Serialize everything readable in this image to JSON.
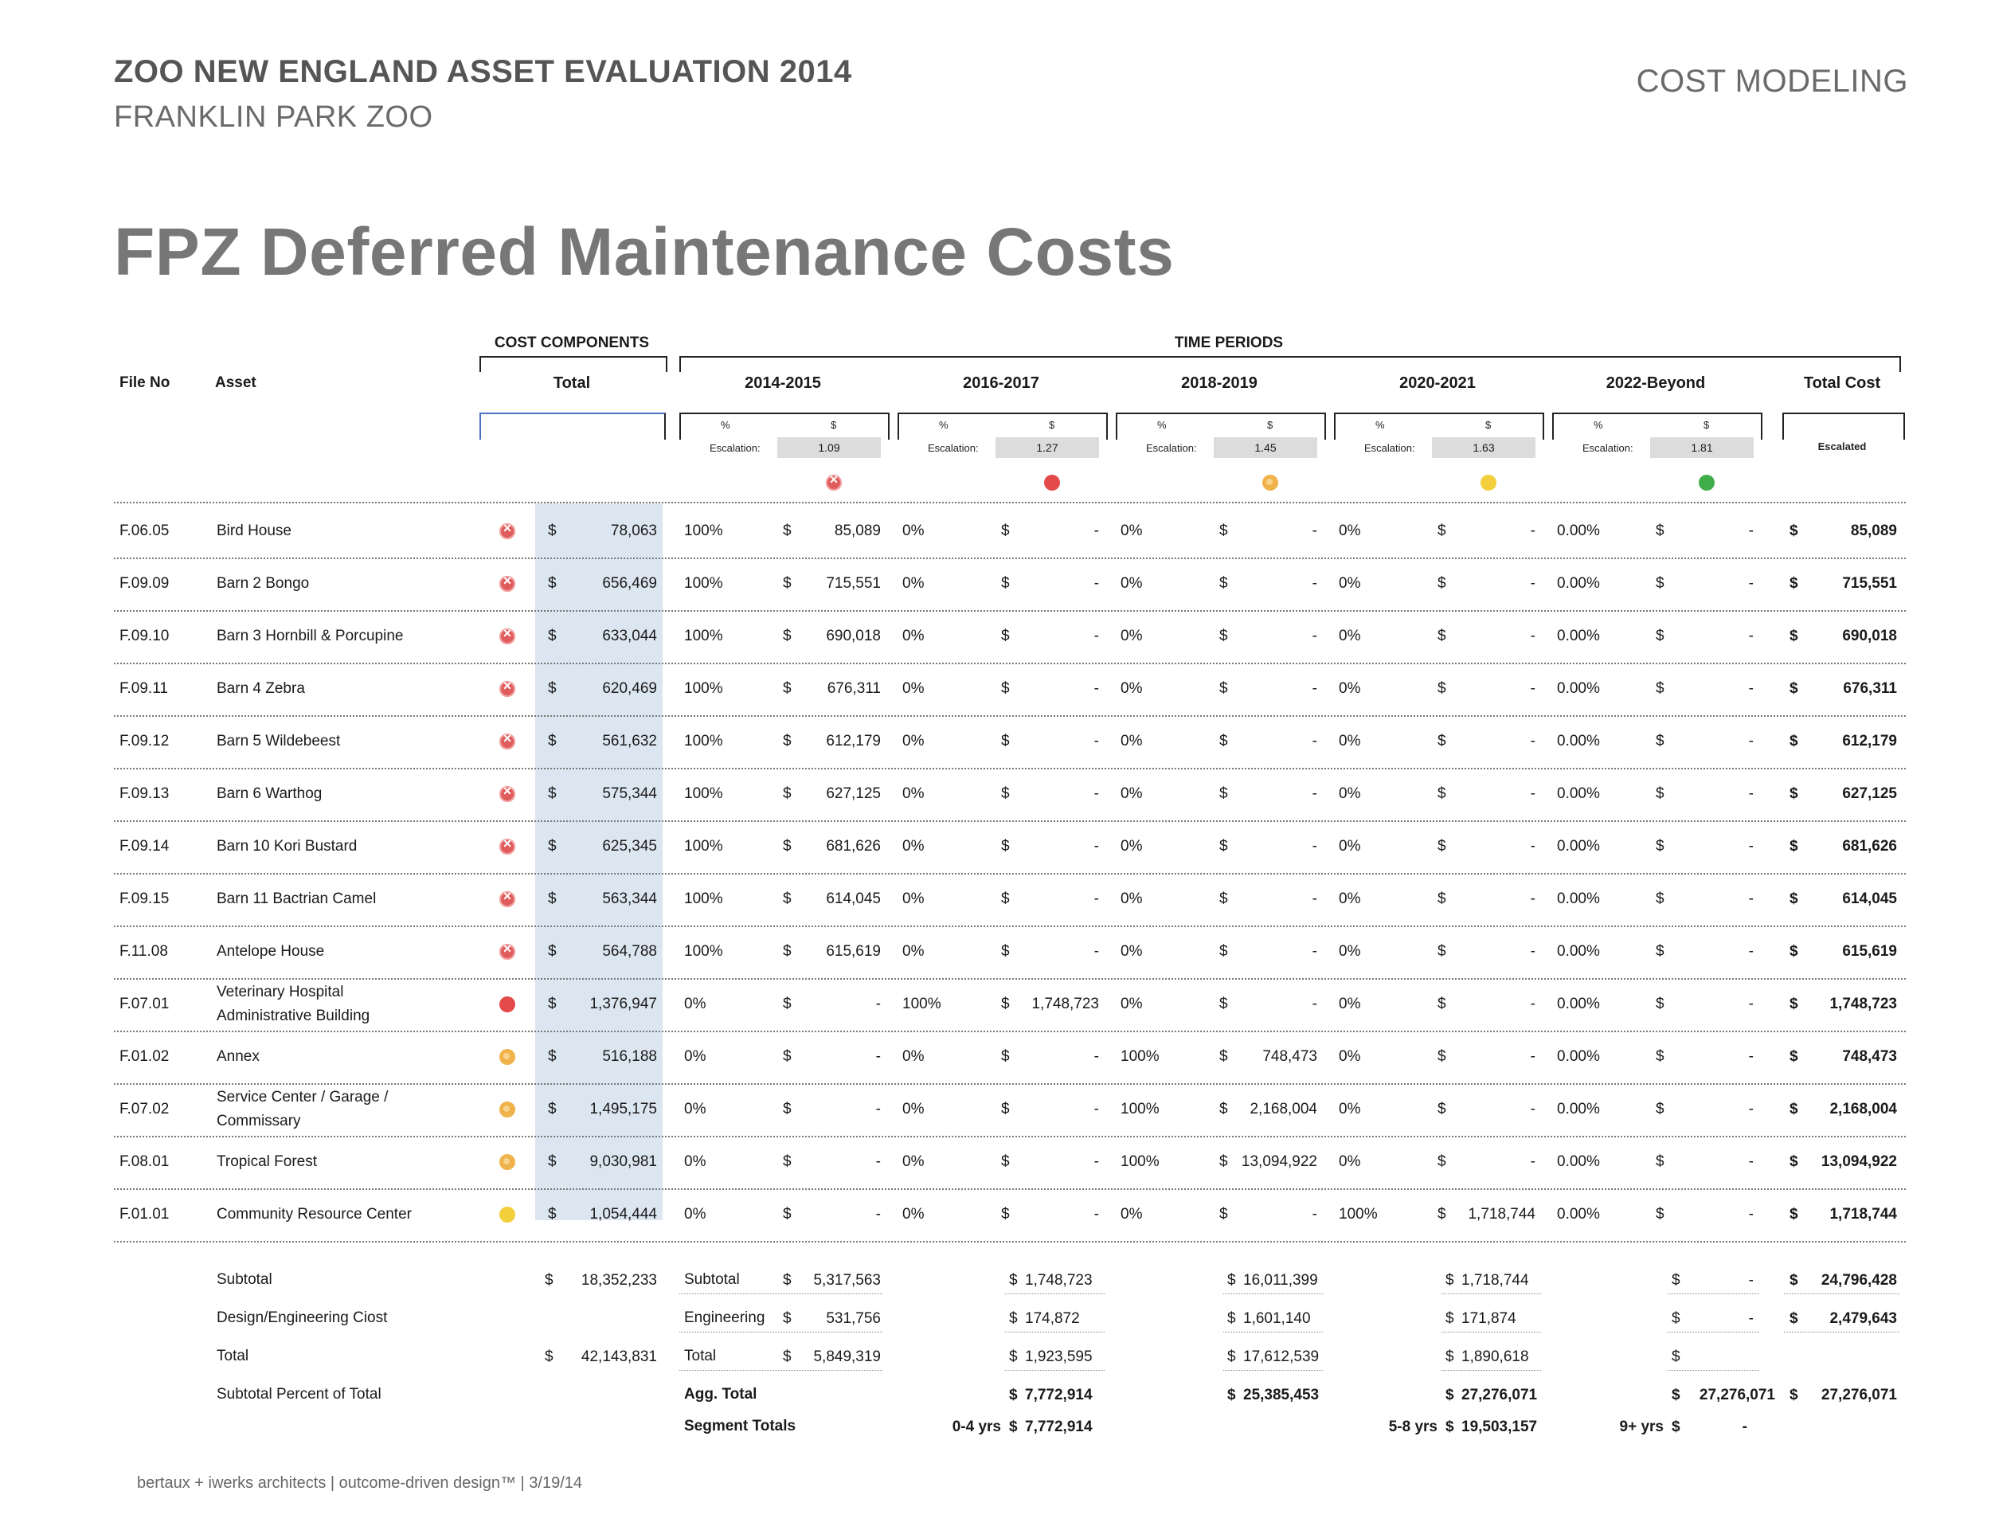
{
  "header": {
    "main": "ZOO NEW ENGLAND ASSET EVALUATION 2014",
    "sub": "FRANKLIN PARK ZOO",
    "right": "COST MODELING",
    "title": "FPZ Deferred Maintenance Costs"
  },
  "groups": {
    "cost_components": "COST COMPONENTS",
    "time_periods": "TIME PERIODS"
  },
  "columns": {
    "file_no": "File No",
    "asset": "Asset",
    "total": "Total",
    "total_cost": "Total Cost",
    "escalated": "Escalated",
    "pct_symbol": "%",
    "dollar_symbol": "$",
    "escalation": "Escalation:"
  },
  "periods": [
    {
      "label": "2014-2015",
      "escalation": "1.09",
      "status": "x-red"
    },
    {
      "label": "2016-2017",
      "escalation": "1.27",
      "status": "red"
    },
    {
      "label": "2018-2019",
      "escalation": "1.45",
      "status": "orange"
    },
    {
      "label": "2020-2021",
      "escalation": "1.63",
      "status": "yellow"
    },
    {
      "label": "2022-Beyond",
      "escalation": "1.81",
      "status": "green"
    }
  ],
  "rows": [
    {
      "file": "F.06.05",
      "asset": [
        "Bird House"
      ],
      "status": "x-red",
      "total": "78,063",
      "periods": [
        [
          "100%",
          "85,089"
        ],
        [
          "0%",
          "-"
        ],
        [
          "0%",
          "-"
        ],
        [
          "0%",
          "-"
        ],
        [
          "0.00%",
          "-"
        ]
      ],
      "escalated": "85,089"
    },
    {
      "file": "F.09.09",
      "asset": [
        "Barn 2 Bongo"
      ],
      "status": "x-red",
      "total": "656,469",
      "periods": [
        [
          "100%",
          "715,551"
        ],
        [
          "0%",
          "-"
        ],
        [
          "0%",
          "-"
        ],
        [
          "0%",
          "-"
        ],
        [
          "0.00%",
          "-"
        ]
      ],
      "escalated": "715,551"
    },
    {
      "file": "F.09.10",
      "asset": [
        "Barn 3 Hornbill & Porcupine"
      ],
      "status": "x-red",
      "total": "633,044",
      "periods": [
        [
          "100%",
          "690,018"
        ],
        [
          "0%",
          "-"
        ],
        [
          "0%",
          "-"
        ],
        [
          "0%",
          "-"
        ],
        [
          "0.00%",
          "-"
        ]
      ],
      "escalated": "690,018"
    },
    {
      "file": "F.09.11",
      "asset": [
        "Barn 4 Zebra"
      ],
      "status": "x-red",
      "total": "620,469",
      "periods": [
        [
          "100%",
          "676,311"
        ],
        [
          "0%",
          "-"
        ],
        [
          "0%",
          "-"
        ],
        [
          "0%",
          "-"
        ],
        [
          "0.00%",
          "-"
        ]
      ],
      "escalated": "676,311"
    },
    {
      "file": "F.09.12",
      "asset": [
        "Barn 5 Wildebeest"
      ],
      "status": "x-red",
      "total": "561,632",
      "periods": [
        [
          "100%",
          "612,179"
        ],
        [
          "0%",
          "-"
        ],
        [
          "0%",
          "-"
        ],
        [
          "0%",
          "-"
        ],
        [
          "0.00%",
          "-"
        ]
      ],
      "escalated": "612,179"
    },
    {
      "file": "F.09.13",
      "asset": [
        "Barn 6 Warthog"
      ],
      "status": "x-red",
      "total": "575,344",
      "periods": [
        [
          "100%",
          "627,125"
        ],
        [
          "0%",
          "-"
        ],
        [
          "0%",
          "-"
        ],
        [
          "0%",
          "-"
        ],
        [
          "0.00%",
          "-"
        ]
      ],
      "escalated": "627,125"
    },
    {
      "file": "F.09.14",
      "asset": [
        "Barn 10 Kori Bustard"
      ],
      "status": "x-red",
      "total": "625,345",
      "periods": [
        [
          "100%",
          "681,626"
        ],
        [
          "0%",
          "-"
        ],
        [
          "0%",
          "-"
        ],
        [
          "0%",
          "-"
        ],
        [
          "0.00%",
          "-"
        ]
      ],
      "escalated": "681,626"
    },
    {
      "file": "F.09.15",
      "asset": [
        "Barn 11 Bactrian Camel"
      ],
      "status": "x-red",
      "total": "563,344",
      "periods": [
        [
          "100%",
          "614,045"
        ],
        [
          "0%",
          "-"
        ],
        [
          "0%",
          "-"
        ],
        [
          "0%",
          "-"
        ],
        [
          "0.00%",
          "-"
        ]
      ],
      "escalated": "614,045"
    },
    {
      "file": "F.11.08",
      "asset": [
        "Antelope House"
      ],
      "status": "x-red",
      "total": "564,788",
      "periods": [
        [
          "100%",
          "615,619"
        ],
        [
          "0%",
          "-"
        ],
        [
          "0%",
          "-"
        ],
        [
          "0%",
          "-"
        ],
        [
          "0.00%",
          "-"
        ]
      ],
      "escalated": "615,619"
    },
    {
      "file": "F.07.01",
      "asset": [
        "Veterinary Hospital",
        "Administrative Building"
      ],
      "status": "red",
      "total": "1,376,947",
      "periods": [
        [
          "0%",
          "-"
        ],
        [
          "100%",
          "1,748,723"
        ],
        [
          "0%",
          "-"
        ],
        [
          "0%",
          "-"
        ],
        [
          "0.00%",
          "-"
        ]
      ],
      "escalated": "1,748,723"
    },
    {
      "file": "F.01.02",
      "asset": [
        "Annex"
      ],
      "status": "orange",
      "total": "516,188",
      "periods": [
        [
          "0%",
          "-"
        ],
        [
          "0%",
          "-"
        ],
        [
          "100%",
          "748,473"
        ],
        [
          "0%",
          "-"
        ],
        [
          "0.00%",
          "-"
        ]
      ],
      "escalated": "748,473"
    },
    {
      "file": "F.07.02",
      "asset": [
        "Service Center / Garage /",
        "Commissary"
      ],
      "status": "orange",
      "total": "1,495,175",
      "periods": [
        [
          "0%",
          "-"
        ],
        [
          "0%",
          "-"
        ],
        [
          "100%",
          "2,168,004"
        ],
        [
          "0%",
          "-"
        ],
        [
          "0.00%",
          "-"
        ]
      ],
      "escalated": "2,168,004"
    },
    {
      "file": "F.08.01",
      "asset": [
        "Tropical Forest"
      ],
      "status": "orange",
      "total": "9,030,981",
      "periods": [
        [
          "0%",
          "-"
        ],
        [
          "0%",
          "-"
        ],
        [
          "100%",
          "13,094,922"
        ],
        [
          "0%",
          "-"
        ],
        [
          "0.00%",
          "-"
        ]
      ],
      "escalated": "13,094,922"
    },
    {
      "file": "F.01.01",
      "asset": [
        "Community Resource Center"
      ],
      "status": "yellow",
      "total": "1,054,444",
      "periods": [
        [
          "0%",
          "-"
        ],
        [
          "0%",
          "-"
        ],
        [
          "0%",
          "-"
        ],
        [
          "100%",
          "1,718,744"
        ],
        [
          "0.00%",
          "-"
        ]
      ],
      "escalated": "1,718,744"
    }
  ],
  "summary": {
    "labels": {
      "subtotal": "Subtotal",
      "design": "Design/Engineering Ciost",
      "total": "Total",
      "pct": "Subtotal Percent of Total"
    },
    "total_col": {
      "subtotal": "18,352,233",
      "total": "42,143,831"
    },
    "inner_labels": {
      "subtotal": "Subtotal",
      "engineering": "Engineering",
      "total": "Total",
      "agg": "Agg. Total",
      "segment": "Segment Totals"
    },
    "p1": {
      "subtotal": "5,317,563",
      "engineering": "531,756",
      "total": "5,849,319"
    },
    "p2": {
      "subtotal": "1,748,723",
      "engineering": "174,872",
      "total": "1,923,595",
      "agg": "7,772,914",
      "seg_label": "0-4 yrs",
      "segment": "7,772,914"
    },
    "p3": {
      "subtotal": "16,011,399",
      "engineering": "1,601,140",
      "total": "17,612,539",
      "agg": "25,385,453"
    },
    "p4": {
      "subtotal": "1,718,744",
      "engineering": "171,874",
      "total": "1,890,618",
      "agg": "27,276,071",
      "seg_label": "5-8 yrs",
      "segment": "19,503,157"
    },
    "p5": {
      "subtotal": "-",
      "engineering": "-",
      "agg": "27,276,071",
      "seg_label": "9+ yrs",
      "segment": "-"
    },
    "escalated": {
      "subtotal": "24,796,428",
      "design": "2,479,643",
      "agg": "27,276,071"
    }
  },
  "footer": "bertaux + iwerks architects | outcome-driven design™ | 3/19/14"
}
